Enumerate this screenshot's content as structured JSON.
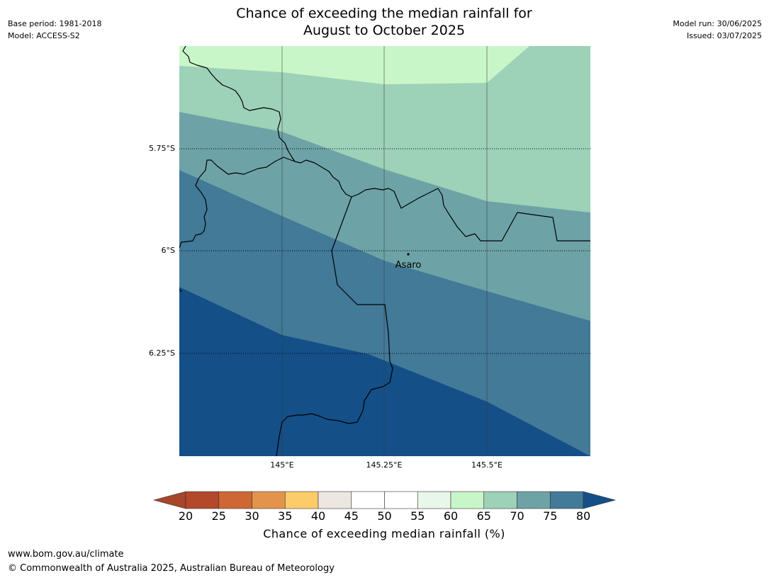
{
  "header": {
    "title_line1": "Chance of exceeding the median rainfall for",
    "title_line2": "August to October 2025",
    "base_period": "Base period: 1981-2018",
    "model": "Model: ACCESS-S2",
    "model_run": "Model run: 30/06/2025",
    "issued": "Issued: 03/07/2025"
  },
  "map": {
    "lat_labels": [
      "5.75°S",
      "6°S",
      "6.25°S"
    ],
    "lon_labels": [
      "145°E",
      "145.25°E",
      "145.5°E"
    ],
    "place": "Asaro",
    "zone_colors": {
      "p60_65": "#c8f6c8",
      "p65_70": "#9dd1b8",
      "p70_75": "#6da3a6",
      "p75_80": "#427a98",
      "p80_plus": "#144f88"
    }
  },
  "colorbar": {
    "ticks": [
      "20",
      "25",
      "30",
      "35",
      "40",
      "45",
      "50",
      "55",
      "60",
      "65",
      "70",
      "75",
      "80"
    ],
    "colors": [
      "#a8452a",
      "#b4482a",
      "#cf6735",
      "#e4944a",
      "#fdcc6a",
      "#ede7e2",
      "#ffffff",
      "#ffffff",
      "#e9f7e9",
      "#c8f6c8",
      "#9dd1b8",
      "#6da3a6",
      "#427a98",
      "#144f88"
    ],
    "title": "Chance of exceeding median rainfall (%)"
  },
  "footer": {
    "url": "www.bom.gov.au/climate",
    "copyright": "© Commonwealth of Australia 2025, Australian Bureau of Meteorology"
  }
}
